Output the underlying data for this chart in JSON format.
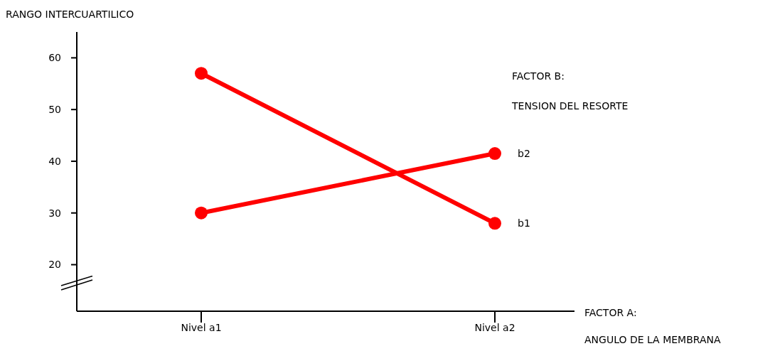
{
  "chart_data": {
    "type": "line",
    "ylabel": "RANGO INTERCUARTILICO",
    "xlabel": "FACTOR A:\nANGULO DE LA MEMBRANA",
    "legend_title": "FACTOR B:\nTENSION DEL RESORTE",
    "categories": [
      "Nivel  a1",
      "Nivel  a2"
    ],
    "series": [
      {
        "name": "b1",
        "color": "#ff0000",
        "values": [
          57,
          28
        ]
      },
      {
        "name": "b2",
        "color": "#ff0000",
        "values": [
          30,
          41.5
        ]
      }
    ],
    "ylim": [
      11,
      65
    ],
    "yticks": [
      20,
      30,
      40,
      50,
      60
    ],
    "grid": false,
    "marker": "circle",
    "line_style": "solid"
  }
}
